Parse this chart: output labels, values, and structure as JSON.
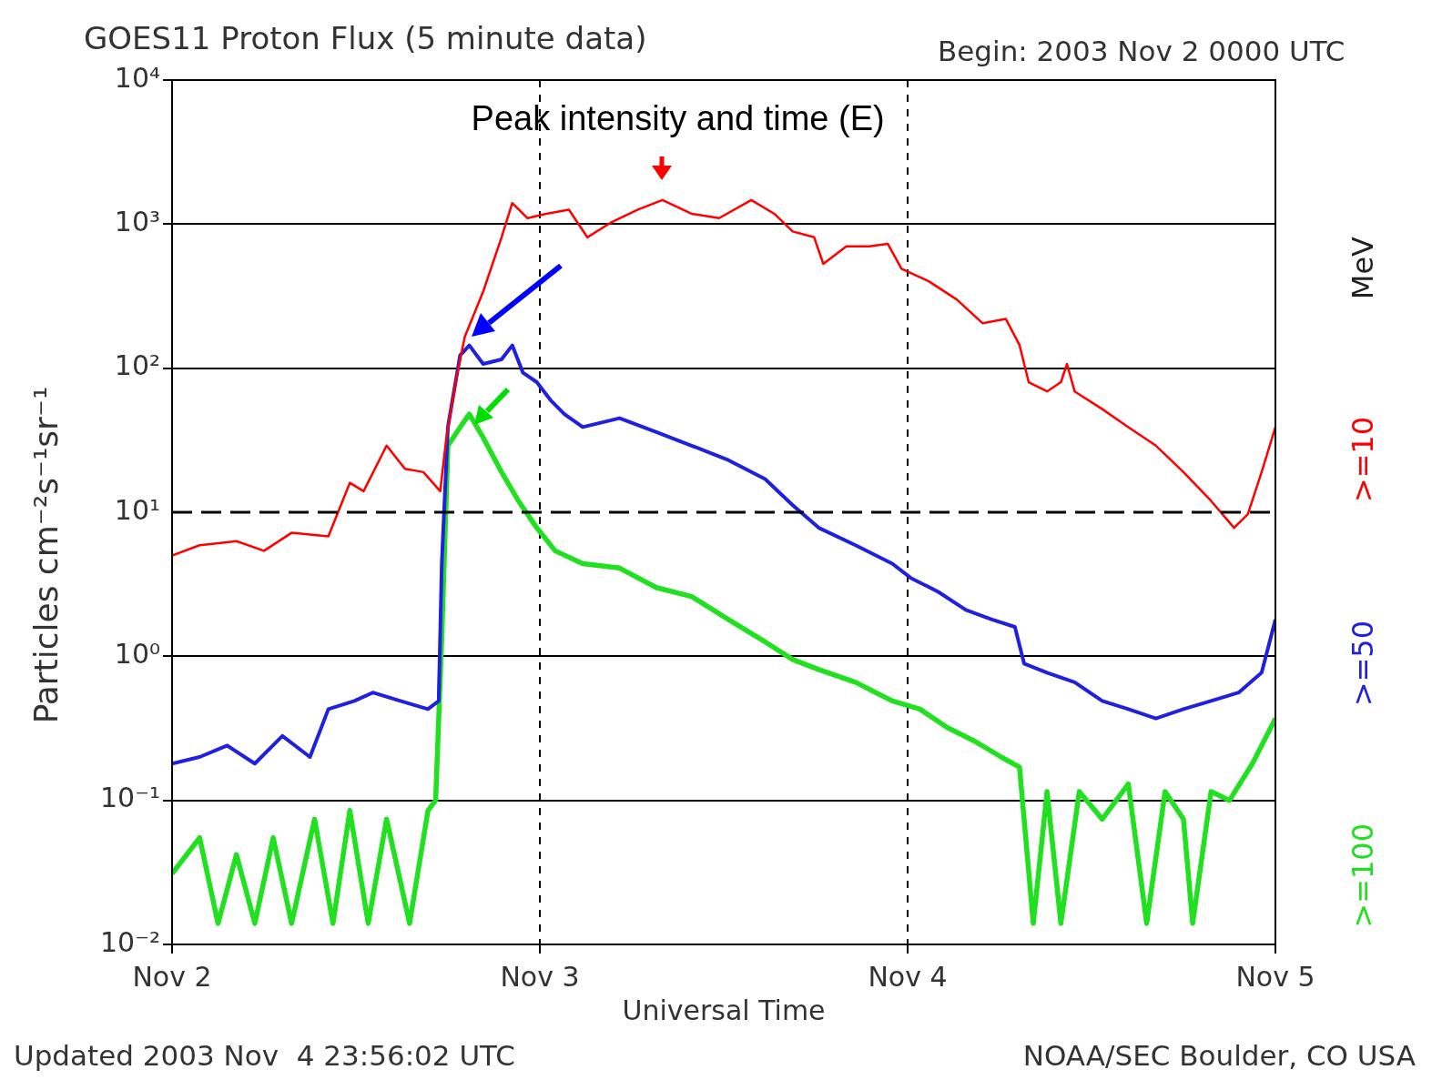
{
  "chart_data": {
    "type": "line",
    "title": "GOES11 Proton Flux (5 minute data)",
    "subtitle": "Begin: 2003 Nov 2 0000 UTC",
    "xlabel": "Universal Time",
    "ylabel": "Particles cm⁻²s⁻¹sr⁻¹",
    "legend_title": "MeV",
    "legend": "right",
    "grid": true,
    "log": "y",
    "marker": "none",
    "line_style": "solid",
    "xlim": [
      "2003-11-02T00:00",
      "2003-11-05T00:00"
    ],
    "xticks": [
      {
        "value": "2003-11-02T00:00",
        "label": "Nov 2"
      },
      {
        "value": "2003-11-03T00:00",
        "label": "Nov 3"
      },
      {
        "value": "2003-11-04T00:00",
        "label": "Nov 4"
      },
      {
        "value": "2003-11-05T00:00",
        "label": "Nov 5"
      }
    ],
    "ylim": [
      0.01,
      10000
    ],
    "yticks": [
      {
        "value": 0.01,
        "label": "10⁻²"
      },
      {
        "value": 0.1,
        "label": "10⁻¹"
      },
      {
        "value": 1,
        "label": "10⁰"
      },
      {
        "value": 10,
        "label": "10¹"
      },
      {
        "value": 100,
        "label": "10²"
      },
      {
        "value": 1000,
        "label": "10³"
      },
      {
        "value": 10000,
        "label": "10⁴"
      }
    ],
    "ref_lines": [
      {
        "axis": "y",
        "value": 10,
        "line_style": "dashed",
        "color": "#000000"
      }
    ],
    "annotations": [
      {
        "text": "Peak intensity and time (E)",
        "x": "2003-11-03T08:00",
        "y": 1500
      },
      "Updated 2003 Nov  4 23:56:02 UTC",
      "NOAA/SEC Boulder, CO USA"
    ],
    "series": [
      {
        "name": ">=10",
        "color": "#ff0000",
        "x": [
          "2003-11-02T00:00",
          "2003-11-02T01:48",
          "2003-11-02T04:12",
          "2003-11-02T06:00",
          "2003-11-02T07:48",
          "2003-11-02T10:12",
          "2003-11-02T11:36",
          "2003-11-02T12:30",
          "2003-11-02T14:00",
          "2003-11-02T15:12",
          "2003-11-02T16:24",
          "2003-11-02T17:30",
          "2003-11-02T17:54",
          "2003-11-02T18:30",
          "2003-11-02T19:06",
          "2003-11-02T20:18",
          "2003-11-02T21:30",
          "2003-11-02T22:12",
          "2003-11-02T23:12",
          "2003-11-03T00:24",
          "2003-11-03T01:54",
          "2003-11-03T03:06",
          "2003-11-03T04:36",
          "2003-11-03T06:24",
          "2003-11-03T08:00",
          "2003-11-03T09:54",
          "2003-11-03T11:42",
          "2003-11-03T13:48",
          "2003-11-03T15:18",
          "2003-11-03T16:30",
          "2003-11-03T17:54",
          "2003-11-03T18:30",
          "2003-11-03T20:00",
          "2003-11-03T21:30",
          "2003-11-03T22:42",
          "2003-11-03T23:36",
          "2003-11-04T01:24",
          "2003-11-04T03:12",
          "2003-11-04T04:54",
          "2003-11-04T06:24",
          "2003-11-04T07:18",
          "2003-11-04T07:54",
          "2003-11-04T09:06",
          "2003-11-04T10:00",
          "2003-11-04T10:24",
          "2003-11-04T10:54",
          "2003-11-04T12:42",
          "2003-11-04T14:24",
          "2003-11-04T16:12",
          "2003-11-04T18:00",
          "2003-11-04T19:48",
          "2003-11-04T21:18",
          "2003-11-04T22:12",
          "2003-11-04T23:06",
          "2003-11-05T00:00"
        ],
        "values": [
          5.0,
          5.9,
          6.3,
          5.4,
          7.2,
          6.8,
          16,
          14,
          29,
          20,
          19,
          14,
          33,
          80,
          165,
          340,
          810,
          1400,
          1100,
          1180,
          1260,
          810,
          1020,
          1260,
          1470,
          1180,
          1100,
          1470,
          1180,
          890,
          810,
          530,
          700,
          700,
          730,
          490,
          400,
          300,
          205,
          220,
          145,
          80,
          69,
          80,
          107,
          69,
          52,
          39,
          29,
          19,
          12,
          7.8,
          9.7,
          19,
          39
        ]
      },
      {
        "name": ">=50",
        "color": "#2020e0",
        "x": [
          "2003-11-02T00:00",
          "2003-11-02T01:48",
          "2003-11-02T03:36",
          "2003-11-02T05:24",
          "2003-11-02T07:12",
          "2003-11-02T09:00",
          "2003-11-02T10:12",
          "2003-11-02T11:54",
          "2003-11-02T13:06",
          "2003-11-02T14:54",
          "2003-11-02T16:42",
          "2003-11-02T17:24",
          "2003-11-02T17:36",
          "2003-11-02T18:00",
          "2003-11-02T18:48",
          "2003-11-02T19:24",
          "2003-11-02T20:18",
          "2003-11-02T21:30",
          "2003-11-02T22:12",
          "2003-11-02T22:54",
          "2003-11-02T23:48",
          "2003-11-03T00:42",
          "2003-11-03T01:36",
          "2003-11-03T02:48",
          "2003-11-03T05:12",
          "2003-11-03T07:36",
          "2003-11-03T09:54",
          "2003-11-03T12:18",
          "2003-11-03T14:42",
          "2003-11-03T16:30",
          "2003-11-03T18:12",
          "2003-11-03T20:36",
          "2003-11-03T23:00",
          "2003-11-04T00:12",
          "2003-11-04T02:00",
          "2003-11-04T03:48",
          "2003-11-04T05:30",
          "2003-11-04T07:00",
          "2003-11-04T07:36",
          "2003-11-04T09:06",
          "2003-11-04T10:54",
          "2003-11-04T12:42",
          "2003-11-04T14:24",
          "2003-11-04T16:12",
          "2003-11-04T18:00",
          "2003-11-04T19:48",
          "2003-11-04T21:36",
          "2003-11-04T23:06",
          "2003-11-05T00:00"
        ],
        "values": [
          0.18,
          0.2,
          0.24,
          0.18,
          0.28,
          0.2,
          0.43,
          0.49,
          0.56,
          0.49,
          0.43,
          0.49,
          4.4,
          39,
          123,
          144,
          107,
          115,
          144,
          93,
          80,
          60,
          48,
          39,
          45,
          36,
          29,
          23,
          17,
          11.2,
          7.8,
          5.9,
          4.4,
          3.5,
          2.8,
          2.1,
          1.8,
          1.6,
          0.89,
          0.77,
          0.66,
          0.49,
          0.43,
          0.37,
          0.43,
          0.49,
          0.56,
          0.77,
          1.8
        ]
      },
      {
        "name": ">=100",
        "color": "#20e020",
        "x": [
          "2003-11-02T00:00",
          "2003-11-02T01:48",
          "2003-11-02T03:00",
          "2003-11-02T04:12",
          "2003-11-02T05:24",
          "2003-11-02T06:36",
          "2003-11-02T07:48",
          "2003-11-02T09:18",
          "2003-11-02T10:30",
          "2003-11-02T11:36",
          "2003-11-02T12:48",
          "2003-11-02T14:00",
          "2003-11-02T15:30",
          "2003-11-02T16:42",
          "2003-11-02T17:12",
          "2003-11-02T17:36",
          "2003-11-02T18:00",
          "2003-11-02T18:48",
          "2003-11-02T19:24",
          "2003-11-02T20:18",
          "2003-11-02T21:30",
          "2003-11-02T22:36",
          "2003-11-02T23:48",
          "2003-11-03T01:00",
          "2003-11-03T02:48",
          "2003-11-03T05:12",
          "2003-11-03T07:36",
          "2003-11-03T09:54",
          "2003-11-03T12:18",
          "2003-11-03T14:42",
          "2003-11-03T16:30",
          "2003-11-03T18:12",
          "2003-11-03T20:36",
          "2003-11-03T23:00",
          "2003-11-04T00:48",
          "2003-11-04T02:36",
          "2003-11-04T04:18",
          "2003-11-04T06:06",
          "2003-11-04T07:18",
          "2003-11-04T08:12",
          "2003-11-04T09:06",
          "2003-11-04T10:00",
          "2003-11-04T11:12",
          "2003-11-04T12:42",
          "2003-11-04T14:24",
          "2003-11-04T15:36",
          "2003-11-04T16:48",
          "2003-11-04T18:00",
          "2003-11-04T18:36",
          "2003-11-04T19:48",
          "2003-11-04T21:00",
          "2003-11-04T22:30",
          "2003-11-05T00:00"
        ],
        "values": [
          0.031,
          0.055,
          0.014,
          0.042,
          0.014,
          0.055,
          0.014,
          0.074,
          0.014,
          0.085,
          0.014,
          0.074,
          0.014,
          0.085,
          0.1,
          1.35,
          29,
          39,
          48,
          33,
          19,
          12,
          7.8,
          5.4,
          4.4,
          4.1,
          3.0,
          2.6,
          1.8,
          1.26,
          0.95,
          0.81,
          0.66,
          0.49,
          0.43,
          0.32,
          0.26,
          0.2,
          0.17,
          0.014,
          0.115,
          0.014,
          0.115,
          0.074,
          0.13,
          0.014,
          0.115,
          0.074,
          0.014,
          0.115,
          0.1,
          0.18,
          0.37
        ]
      }
    ]
  }
}
